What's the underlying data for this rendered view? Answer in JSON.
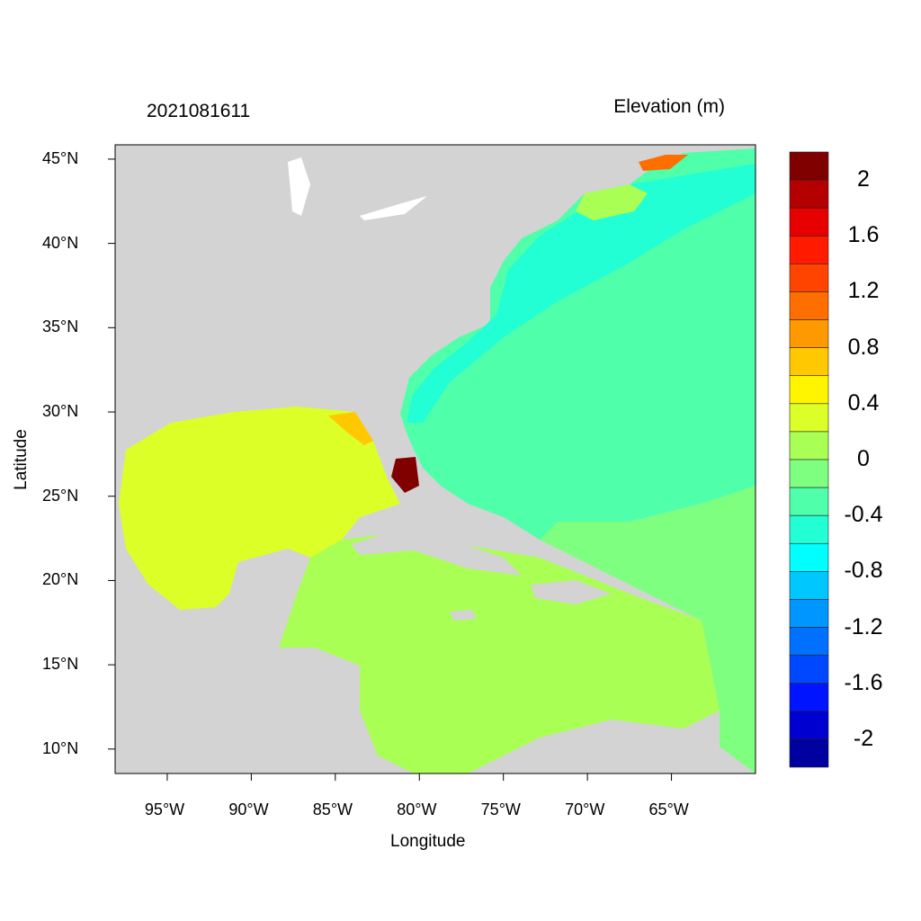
{
  "title_left": "2021081611",
  "title_right": "Elevation (m)",
  "map": {
    "xlabel": "Longitude",
    "ylabel": "Latitude",
    "lon_range": [
      -98.1,
      -60.0
    ],
    "lat_range": [
      8.55,
      45.85
    ],
    "lon_ticks": [
      {
        "value": -95,
        "label": "95°W"
      },
      {
        "value": -90,
        "label": "90°W"
      },
      {
        "value": -85,
        "label": "85°W"
      },
      {
        "value": -80,
        "label": "80°W"
      },
      {
        "value": -75,
        "label": "75°W"
      },
      {
        "value": -70,
        "label": "70°W"
      },
      {
        "value": -65,
        "label": "65°W"
      }
    ],
    "lat_ticks": [
      {
        "value": 45,
        "label": "45°N"
      },
      {
        "value": 40,
        "label": "40°N"
      },
      {
        "value": 35,
        "label": "35°N"
      },
      {
        "value": 30,
        "label": "30°N"
      },
      {
        "value": 25,
        "label": "25°N"
      },
      {
        "value": 20,
        "label": "20°N"
      },
      {
        "value": 15,
        "label": "15°N"
      },
      {
        "value": 10,
        "label": "10°N"
      }
    ],
    "land_color": "#d3d3d3",
    "region_colors": {
      "atlantic": "#50ffaa",
      "atlantic_coastal": "#22ffd4",
      "gulf_of_mexico": "#dcff28",
      "caribbean": "#aaff55",
      "east_caribbean": "#7fff7f",
      "south_florida": "#800000",
      "northeast_hotspot": "#ff6e00",
      "gulf_hotspot": "#ffc800"
    }
  },
  "colorbar": {
    "colors": [
      "#800000",
      "#b40000",
      "#e60000",
      "#ff1a00",
      "#ff4400",
      "#ff6e00",
      "#ff9900",
      "#ffc800",
      "#fff500",
      "#dcff28",
      "#aaff55",
      "#7fff7f",
      "#50ffaa",
      "#22ffd4",
      "#00ffff",
      "#00c8ff",
      "#0096ff",
      "#0070ff",
      "#0048ff",
      "#0014ff",
      "#0000d0",
      "#0000a0"
    ],
    "labels": [
      "2",
      "1.6",
      "1.2",
      "0.8",
      "0.4",
      "0",
      "-0.4",
      "-0.8",
      "-1.2",
      "-1.6",
      "-2"
    ]
  }
}
